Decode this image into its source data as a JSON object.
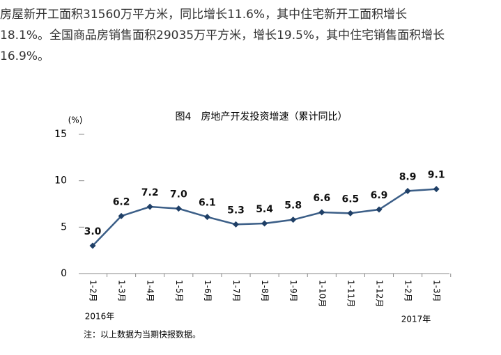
{
  "article": {
    "lines": [
      "房屋新开工面积31560万平方米，同比增长11.6%，其中住宅新开工面积增长",
      "18.1%。全国商品房销售面积29035万平方米，增长19.5%，其中住宅销售面积增长",
      "16.9%。"
    ]
  },
  "chart_data": {
    "type": "line",
    "title": "图4　房地产开发投资增速（累计同比）",
    "y_label": "(%)",
    "categories": [
      "1-2月",
      "1-3月",
      "1-4月",
      "1-5月",
      "1-6月",
      "1-7月",
      "1-8月",
      "1-9月",
      "1-10月",
      "1-11月",
      "1-12月",
      "1-2月",
      "1-3月"
    ],
    "year_labels": [
      "2016年",
      "2017年"
    ],
    "series": [
      {
        "color": "#3b5e87",
        "values": [
          3.0,
          6.2,
          7.2,
          7.0,
          6.1,
          5.3,
          5.4,
          5.8,
          6.6,
          6.5,
          6.9,
          8.9,
          9.1
        ],
        "value_labels": [
          "3.0",
          "6.2",
          "7.2",
          "7.0",
          "6.1",
          "5.3",
          "5.4",
          "5.8",
          "6.6",
          "6.5",
          "6.9",
          "8.9",
          "9.1"
        ]
      }
    ],
    "ylim": [
      0,
      15
    ],
    "yticks": [
      0,
      5,
      10,
      15
    ],
    "grid": false,
    "note": "注：以上数据为当期快报数据。"
  }
}
